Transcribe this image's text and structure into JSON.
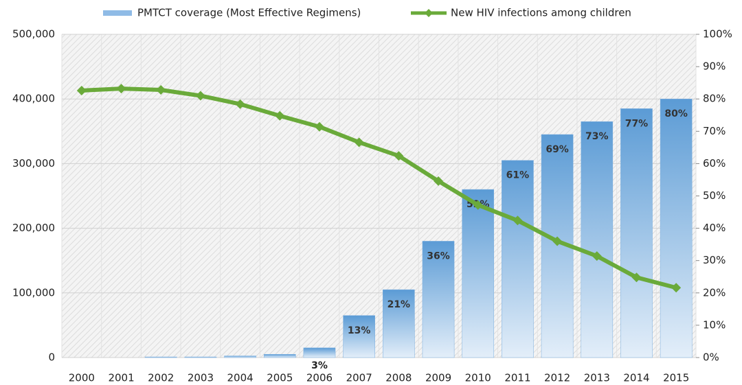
{
  "chart_data": {
    "type": "bar-line",
    "categories": [
      "2000",
      "2001",
      "2002",
      "2003",
      "2004",
      "2005",
      "2006",
      "2007",
      "2008",
      "2009",
      "2010",
      "2011",
      "2012",
      "2013",
      "2014",
      "2015"
    ],
    "series": [
      {
        "name": "PMTCT coverage (Most Effective Regimens)",
        "type": "bar",
        "axis": "y2",
        "color": "#5b9bd5",
        "values": [
          0,
          0,
          0.2,
          0.2,
          0.5,
          1,
          3,
          13,
          21,
          36,
          52,
          61,
          69,
          73,
          77,
          80
        ],
        "value_labels": [
          null,
          null,
          null,
          null,
          null,
          null,
          "3%",
          "13%",
          "21%",
          "36%",
          "52%",
          "61%",
          "69%",
          "73%",
          "77%",
          "80%"
        ]
      },
      {
        "name": "New HIV infections among children",
        "type": "line",
        "axis": "y",
        "color": "#6aaa3a",
        "values": [
          413000,
          416000,
          414000,
          405000,
          392000,
          374000,
          357000,
          333000,
          312000,
          273000,
          236000,
          212000,
          180000,
          157000,
          124000,
          108000
        ]
      }
    ],
    "ylim": [
      0,
      500000
    ],
    "yticks": [
      0,
      {
        "value": 100000,
        "label": "100,000"
      },
      {
        "value": 200000,
        "label": "200,000"
      },
      {
        "value": 300000,
        "label": "300,000"
      },
      {
        "value": 400000,
        "label": "400,000"
      },
      {
        "value": 500000,
        "label": "500,000"
      }
    ],
    "y2lim": [
      0,
      100
    ],
    "y2ticks": [
      {
        "value": 0,
        "label": "0%"
      },
      {
        "value": 10,
        "label": "10%"
      },
      {
        "value": 20,
        "label": "20%"
      },
      {
        "value": 30,
        "label": "30%"
      },
      {
        "value": 40,
        "label": "40%"
      },
      {
        "value": 50,
        "label": "50%"
      },
      {
        "value": 60,
        "label": "60%"
      },
      {
        "value": 70,
        "label": "70%"
      },
      {
        "value": 80,
        "label": "80%"
      },
      {
        "value": 90,
        "label": "90%"
      },
      {
        "value": 100,
        "label": "100%"
      }
    ],
    "grid": true
  }
}
